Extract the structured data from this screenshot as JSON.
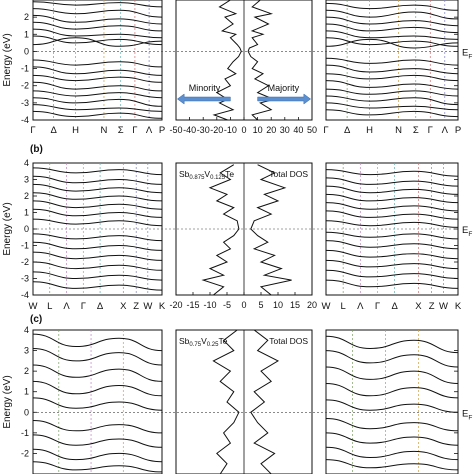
{
  "chart_data": [
    {
      "type": "line",
      "panel_label": "",
      "ylabel": "Energy (eV)",
      "ylim": [
        -4,
        3
      ],
      "yticks": [
        -4,
        -3,
        -2,
        -1,
        0,
        1,
        2
      ],
      "fermi_label": "E",
      "fermi_sub": "F",
      "band_kpoints": [
        "Γ",
        "Δ",
        "H",
        "N",
        "Σ",
        "Γ",
        "Λ",
        "P"
      ],
      "dos": {
        "xlim": [
          -50,
          50
        ],
        "xticks": [
          -50,
          -40,
          -30,
          -20,
          -10,
          0,
          10,
          20,
          30,
          40,
          50
        ],
        "compound": "",
        "title": "",
        "minority_label": "Minority",
        "majority_label": "Majority",
        "majority_profile": [
          [
            3,
            12
          ],
          [
            2.6,
            6
          ],
          [
            2.2,
            20
          ],
          [
            2,
            8
          ],
          [
            1.6,
            18
          ],
          [
            1.2,
            6
          ],
          [
            1,
            14
          ],
          [
            0.8,
            6
          ],
          [
            0.4,
            10
          ],
          [
            0.2,
            4
          ],
          [
            0,
            3
          ],
          [
            -0.3,
            5
          ],
          [
            -0.6,
            10
          ],
          [
            -1,
            6
          ],
          [
            -1.3,
            14
          ],
          [
            -1.6,
            8
          ],
          [
            -2,
            18
          ],
          [
            -2.4,
            10
          ],
          [
            -2.8,
            22
          ],
          [
            -3,
            12
          ],
          [
            -3.4,
            20
          ],
          [
            -3.7,
            6
          ],
          [
            -4,
            10
          ]
        ],
        "minority_profile": [
          [
            3,
            -10
          ],
          [
            2.6,
            -18
          ],
          [
            2.2,
            -6
          ],
          [
            2,
            -14
          ],
          [
            1.6,
            -8
          ],
          [
            1.2,
            -16
          ],
          [
            1,
            -6
          ],
          [
            0.8,
            -10
          ],
          [
            0.4,
            -5
          ],
          [
            0.2,
            -3
          ],
          [
            0,
            -2
          ],
          [
            -0.3,
            -4
          ],
          [
            -0.6,
            -8
          ],
          [
            -1,
            -12
          ],
          [
            -1.3,
            -6
          ],
          [
            -1.6,
            -14
          ],
          [
            -2,
            -10
          ],
          [
            -2.4,
            -20
          ],
          [
            -2.8,
            -12
          ],
          [
            -3,
            -18
          ],
          [
            -3.4,
            -8
          ],
          [
            -3.7,
            -22
          ],
          [
            -4,
            -12
          ]
        ]
      },
      "left_bands": [
        [
          2.9,
          2.7,
          2.85,
          2.6
        ],
        [
          2.5,
          2.2,
          2.4,
          2.0
        ],
        [
          2.1,
          1.7,
          1.9,
          1.6
        ],
        [
          1.7,
          1.3,
          1.5,
          1.2
        ],
        [
          1.3,
          0.9,
          1.0,
          0.8
        ],
        [
          0.9,
          0.5,
          0.7,
          0.4
        ],
        [
          0.4,
          0.8,
          0.3,
          0.6
        ],
        [
          -0.5,
          -0.8,
          -0.6,
          -0.9
        ],
        [
          -0.9,
          -1.3,
          -1.1,
          -1.4
        ],
        [
          -1.4,
          -1.7,
          -1.5,
          -1.8
        ],
        [
          -1.8,
          -2.2,
          -2.0,
          -2.3
        ],
        [
          -2.3,
          -2.6,
          -2.4,
          -2.7
        ],
        [
          -2.7,
          -3.0,
          -2.8,
          -3.2
        ],
        [
          -3.1,
          -3.4,
          -3.3,
          -3.5
        ],
        [
          -3.5,
          -3.8,
          -3.6,
          -3.9
        ]
      ],
      "right_bands": [
        [
          2.8,
          2.5,
          2.7,
          2.4
        ],
        [
          2.4,
          2.0,
          2.3,
          1.9
        ],
        [
          2.0,
          1.6,
          1.8,
          1.5
        ],
        [
          1.6,
          1.2,
          1.4,
          1.1
        ],
        [
          1.2,
          0.8,
          0.9,
          0.7
        ],
        [
          0.8,
          0.4,
          0.6,
          0.3
        ],
        [
          0.3,
          0.7,
          0.2,
          0.5
        ],
        [
          -0.4,
          -0.7,
          -0.5,
          -0.8
        ],
        [
          -0.8,
          -1.2,
          -1.0,
          -1.3
        ],
        [
          -1.3,
          -1.6,
          -1.4,
          -1.7
        ],
        [
          -1.7,
          -2.1,
          -1.9,
          -2.2
        ],
        [
          -2.2,
          -2.5,
          -2.3,
          -2.6
        ],
        [
          -2.6,
          -2.9,
          -2.7,
          -3.1
        ],
        [
          -3.0,
          -3.3,
          -3.2,
          -3.4
        ],
        [
          -3.4,
          -3.7,
          -3.5,
          -3.8
        ]
      ]
    },
    {
      "type": "line",
      "panel_label": "(b)",
      "ylabel": "Energy (eV)",
      "ylim": [
        -4,
        4
      ],
      "yticks": [
        -4,
        -3,
        -2,
        -1,
        0,
        1,
        2,
        3,
        4
      ],
      "fermi_label": "E",
      "fermi_sub": "F",
      "band_kpoints": [
        "W",
        "L",
        "Λ",
        "Γ",
        "Δ",
        "X",
        "Z",
        "W",
        "K"
      ],
      "dos": {
        "xlim": [
          -20,
          20
        ],
        "xticks": [
          -20,
          -15,
          -10,
          -5,
          0,
          5,
          10,
          15,
          20
        ],
        "compound": "Sb0.875V0.125Te",
        "title": "Total DOS",
        "minority_label": "",
        "majority_label": "",
        "majority_profile": [
          [
            3.9,
            4
          ],
          [
            3.4,
            9
          ],
          [
            3,
            5
          ],
          [
            2.5,
            12
          ],
          [
            2.1,
            6
          ],
          [
            1.7,
            10
          ],
          [
            1.3,
            4
          ],
          [
            0.9,
            8
          ],
          [
            0.5,
            3
          ],
          [
            0,
            2
          ],
          [
            -0.4,
            4
          ],
          [
            -0.8,
            7
          ],
          [
            -1.2,
            3
          ],
          [
            -1.6,
            9
          ],
          [
            -2,
            5
          ],
          [
            -2.4,
            11
          ],
          [
            -2.8,
            6
          ],
          [
            -3.1,
            14
          ],
          [
            -3.5,
            5
          ],
          [
            -4,
            8
          ]
        ],
        "minority_profile": [
          [
            3.9,
            -3
          ],
          [
            3.4,
            -7
          ],
          [
            3,
            -4
          ],
          [
            2.5,
            -10
          ],
          [
            2.1,
            -5
          ],
          [
            1.7,
            -8
          ],
          [
            1.3,
            -3
          ],
          [
            0.9,
            -6
          ],
          [
            0.5,
            -2
          ],
          [
            0,
            -1.5
          ],
          [
            -0.4,
            -3
          ],
          [
            -0.8,
            -6
          ],
          [
            -1.2,
            -4
          ],
          [
            -1.6,
            -8
          ],
          [
            -2,
            -5
          ],
          [
            -2.4,
            -10
          ],
          [
            -2.8,
            -6
          ],
          [
            -3.1,
            -12
          ],
          [
            -3.5,
            -6
          ],
          [
            -4,
            -9
          ]
        ]
      },
      "left_bands": [
        [
          3.7,
          3.4,
          3.6,
          3.3
        ],
        [
          3.2,
          2.8,
          3.0,
          2.7
        ],
        [
          2.7,
          2.3,
          2.5,
          2.2
        ],
        [
          2.2,
          1.8,
          2.0,
          1.7
        ],
        [
          1.7,
          1.3,
          1.5,
          1.2
        ],
        [
          1.2,
          0.8,
          1.0,
          0.7
        ],
        [
          0.6,
          0.3,
          0.5,
          0.2
        ],
        [
          -0.3,
          -0.6,
          -0.4,
          -0.7
        ],
        [
          -0.8,
          -1.2,
          -1.0,
          -1.3
        ],
        [
          -1.4,
          -1.8,
          -1.6,
          -1.9
        ],
        [
          -2.0,
          -2.4,
          -2.2,
          -2.5
        ],
        [
          -2.6,
          -3.0,
          -2.8,
          -3.1
        ],
        [
          -3.2,
          -3.6,
          -3.4,
          -3.7
        ]
      ],
      "right_bands": [
        [
          3.6,
          3.3,
          3.5,
          3.2
        ],
        [
          3.1,
          2.7,
          2.9,
          2.6
        ],
        [
          2.6,
          2.2,
          2.4,
          2.1
        ],
        [
          2.1,
          1.7,
          1.9,
          1.6
        ],
        [
          1.6,
          1.2,
          1.4,
          1.1
        ],
        [
          1.1,
          0.7,
          0.9,
          0.6
        ],
        [
          0.5,
          0.2,
          0.4,
          0.1
        ],
        [
          -0.2,
          -0.5,
          -0.3,
          -0.6
        ],
        [
          -0.7,
          -1.1,
          -0.9,
          -1.2
        ],
        [
          -1.3,
          -1.7,
          -1.5,
          -1.8
        ],
        [
          -1.9,
          -2.3,
          -2.1,
          -2.4
        ],
        [
          -2.5,
          -2.9,
          -2.7,
          -3.0
        ],
        [
          -3.1,
          -3.5,
          -3.3,
          -3.6
        ]
      ]
    },
    {
      "type": "line",
      "panel_label": "(c)",
      "ylabel": "Energy (eV)",
      "ylim": [
        -3,
        4
      ],
      "yticks": [
        -2,
        -1,
        0,
        1,
        2,
        3,
        4
      ],
      "fermi_label": "E",
      "fermi_sub": "F",
      "band_kpoints": [],
      "dos": {
        "xlim": [
          -20,
          20
        ],
        "xticks": [],
        "compound": "Sb0.75V0.25Te",
        "title": "Total DOS",
        "minority_label": "",
        "majority_label": "",
        "majority_profile": [
          [
            4,
            3
          ],
          [
            3.5,
            7
          ],
          [
            3,
            4
          ],
          [
            2.5,
            10
          ],
          [
            2,
            5
          ],
          [
            1.5,
            8
          ],
          [
            1,
            3
          ],
          [
            0.5,
            6
          ],
          [
            0,
            2
          ],
          [
            -0.5,
            4
          ],
          [
            -1,
            7
          ],
          [
            -1.5,
            3
          ],
          [
            -2,
            9
          ],
          [
            -2.5,
            5
          ],
          [
            -3,
            8
          ]
        ],
        "minority_profile": [
          [
            4,
            -2
          ],
          [
            3.5,
            -6
          ],
          [
            3,
            -3
          ],
          [
            2.5,
            -9
          ],
          [
            2,
            -4
          ],
          [
            1.5,
            -7
          ],
          [
            1,
            -3
          ],
          [
            0.5,
            -5
          ],
          [
            0,
            -1.5
          ],
          [
            -0.5,
            -3
          ],
          [
            -1,
            -6
          ],
          [
            -1.5,
            -4
          ],
          [
            -2,
            -8
          ],
          [
            -2.5,
            -5
          ],
          [
            -3,
            -7
          ]
        ]
      },
      "left_bands": [
        [
          3.8,
          3.2,
          3.6,
          3.0
        ],
        [
          3.1,
          2.5,
          2.9,
          2.3
        ],
        [
          2.3,
          1.7,
          2.1,
          1.5
        ],
        [
          1.5,
          0.9,
          1.3,
          0.8
        ],
        [
          0.7,
          0.2,
          0.5,
          0.1
        ],
        [
          -0.4,
          -0.9,
          -0.6,
          -1.0
        ],
        [
          -1.1,
          -1.6,
          -1.3,
          -1.7
        ],
        [
          -1.8,
          -2.3,
          -2.0,
          -2.4
        ],
        [
          -2.4,
          -2.8,
          -2.6,
          -2.9
        ]
      ],
      "right_bands": [
        [
          3.7,
          3.1,
          3.5,
          2.9
        ],
        [
          3.0,
          2.4,
          2.8,
          2.2
        ],
        [
          2.2,
          1.6,
          2.0,
          1.4
        ],
        [
          1.4,
          0.8,
          1.2,
          0.7
        ],
        [
          0.6,
          0.1,
          0.4,
          0.0
        ],
        [
          -0.3,
          -0.8,
          -0.5,
          -0.9
        ],
        [
          -1.0,
          -1.5,
          -1.2,
          -1.6
        ],
        [
          -1.7,
          -2.2,
          -1.9,
          -2.3
        ],
        [
          -2.3,
          -2.7,
          -2.5,
          -2.8
        ]
      ]
    }
  ]
}
